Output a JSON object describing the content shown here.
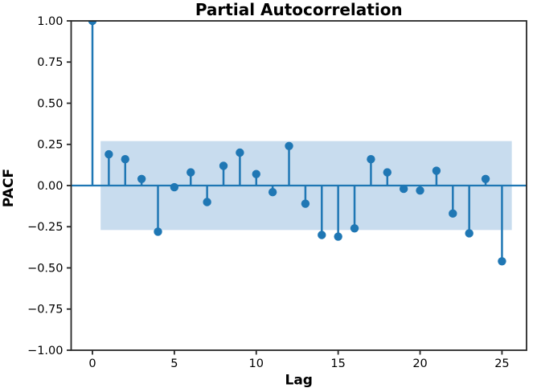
{
  "chart_data": {
    "type": "stem",
    "title": "Partial Autocorrelation",
    "xlabel": "Lag",
    "ylabel": "PACF",
    "x": [
      0,
      1,
      2,
      3,
      4,
      5,
      6,
      7,
      8,
      9,
      10,
      11,
      12,
      13,
      14,
      15,
      16,
      17,
      18,
      19,
      20,
      21,
      22,
      23,
      24,
      25
    ],
    "values": [
      1.0,
      0.19,
      0.16,
      0.04,
      -0.28,
      -0.01,
      0.08,
      -0.1,
      0.12,
      0.2,
      0.07,
      -0.04,
      0.24,
      -0.11,
      -0.3,
      -0.31,
      -0.26,
      0.16,
      0.08,
      -0.02,
      -0.03,
      0.09,
      -0.17,
      -0.29,
      0.04,
      -0.46
    ],
    "confidence_band": {
      "lower": -0.27,
      "upper": 0.27,
      "x_start": 0.5,
      "x_end": 25.6
    },
    "xlim": [
      -1.3,
      26.5
    ],
    "ylim": [
      -1.0,
      1.0
    ],
    "xtick_values": [
      0,
      5,
      10,
      15,
      20,
      25
    ],
    "xtick_labels": [
      "0",
      "5",
      "10",
      "15",
      "20",
      "25"
    ],
    "ytick_values": [
      1.0,
      0.75,
      0.5,
      0.25,
      0.0,
      -0.25,
      -0.5,
      -0.75,
      -1.0
    ],
    "ytick_labels": [
      "1.00",
      "0.75",
      "0.50",
      "0.25",
      "0.00",
      "−0.25",
      "−0.50",
      "−0.75",
      "−1.00"
    ],
    "grid": false,
    "legend": null,
    "colors": {
      "stem": "#1f77b4",
      "marker": "#1f77b4",
      "band": "#c8dcee",
      "zero_line": "#1f77b4",
      "spine": "#262626",
      "text": "#000000"
    }
  }
}
